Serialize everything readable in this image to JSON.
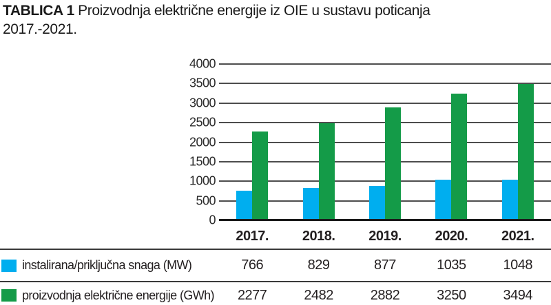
{
  "title": {
    "label": "TABLICA 1",
    "line1": "Proizvodnja električne energije iz OIE u sustavu poticanja",
    "line2": "2017.-2021."
  },
  "colors": {
    "series_blue": "#00AEEF",
    "series_green": "#149B48",
    "gridline": "#4D4D4D",
    "axis": "#1A1A1A",
    "text": "#231F20"
  },
  "chart_data": {
    "type": "bar",
    "title": "Proizvodnja električne energije iz OIE u sustavu poticanja 2017.-2021.",
    "categories": [
      "2017.",
      "2018.",
      "2019.",
      "2020.",
      "2021."
    ],
    "series": [
      {
        "name": "instalirana/priključna snaga (MW)",
        "color": "#00AEEF",
        "values": [
          766,
          829,
          877,
          1035,
          1048
        ]
      },
      {
        "name": "proizvodnja električne energije (GWh)",
        "color": "#149B48",
        "values": [
          2277,
          2482,
          2882,
          3250,
          3494
        ]
      }
    ],
    "xlabel": "",
    "ylabel": "",
    "ylim": [
      0,
      4000
    ],
    "yticks": [
      0,
      500,
      1000,
      1500,
      2000,
      2500,
      3000,
      3500,
      4000
    ],
    "grid": true,
    "legend_position": "table-below-left"
  },
  "table": {
    "columns": [
      "2017.",
      "2018.",
      "2019.",
      "2020.",
      "2021."
    ],
    "rows": [
      {
        "swatch_color": "#00AEEF",
        "label": "instalirana/priključna snaga (MW)",
        "values": [
          "766",
          "829",
          "877",
          "1035",
          "1048"
        ]
      },
      {
        "swatch_color": "#149B48",
        "label": "proizvodnja električne energije (GWh)",
        "values": [
          "2277",
          "2482",
          "2882",
          "3250",
          "3494"
        ]
      }
    ]
  }
}
